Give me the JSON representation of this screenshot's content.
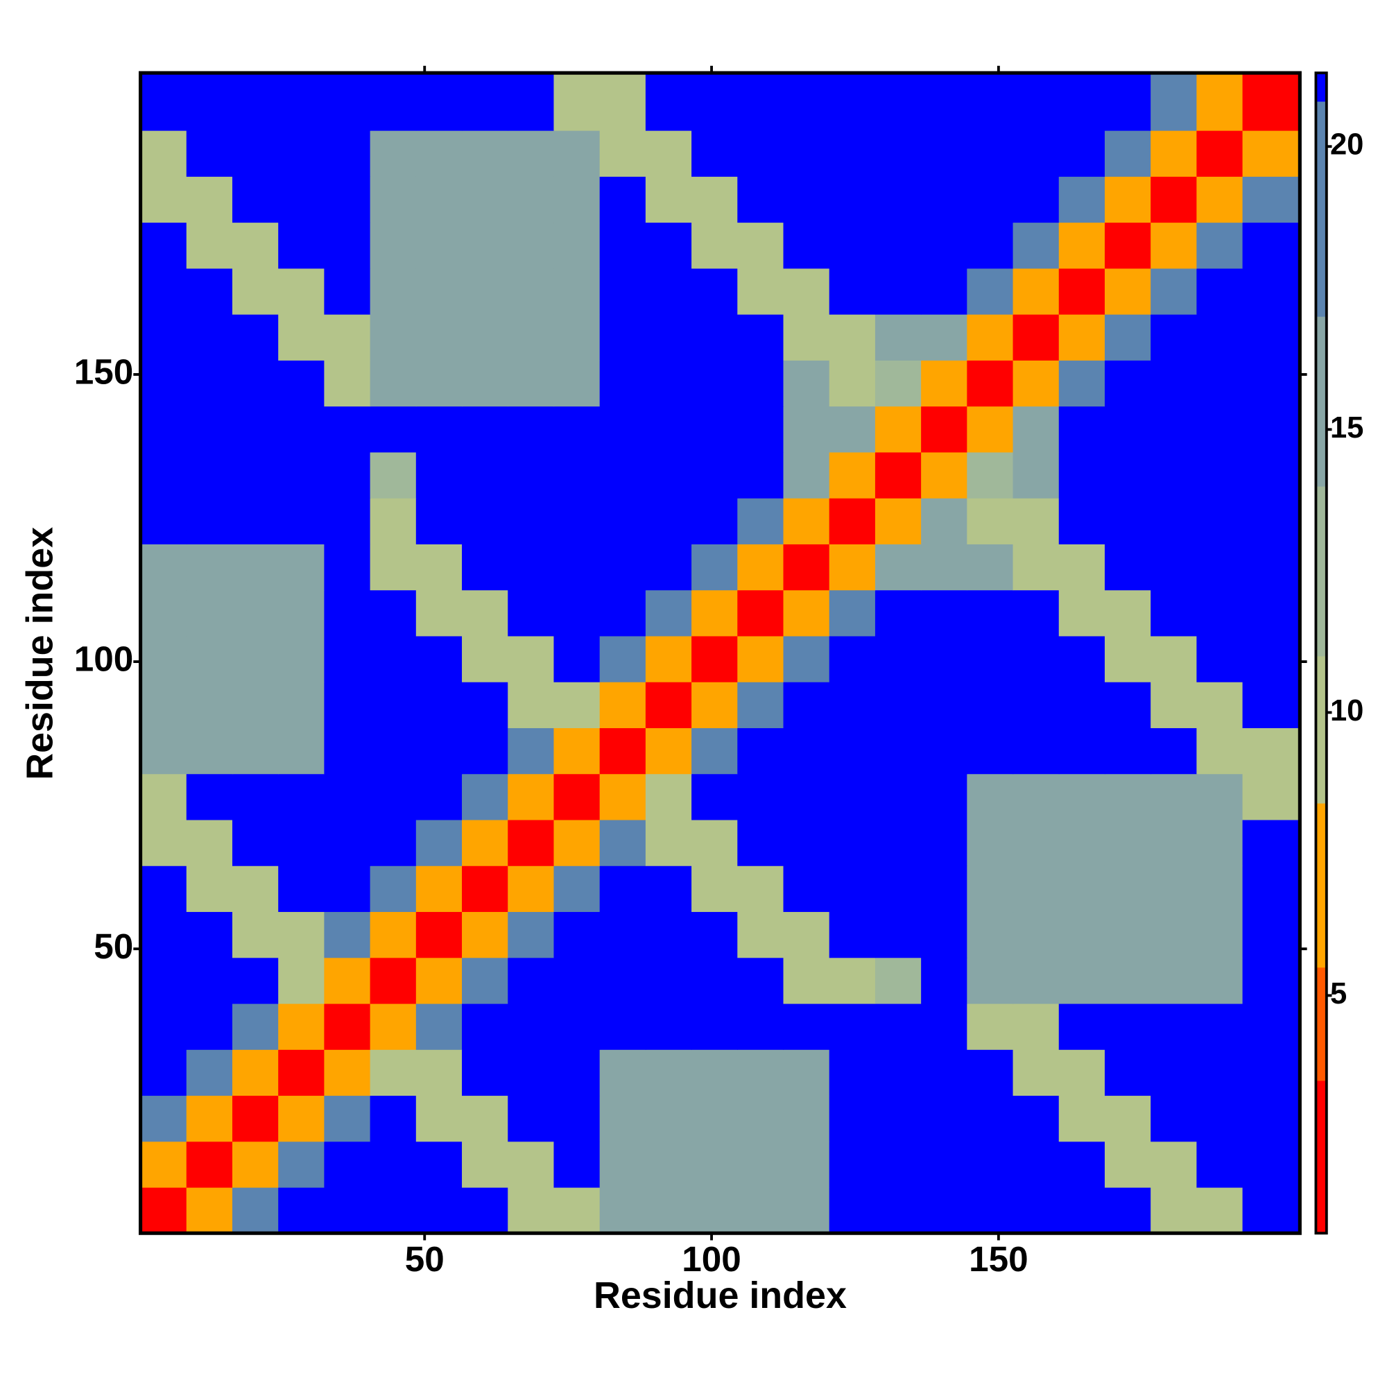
{
  "chart_data": {
    "type": "heatmap",
    "xlabel": "Residue index",
    "ylabel": "Residue index",
    "x": [
      4.5,
      12.5,
      20.5,
      28.5,
      36.5,
      44.5,
      52.5,
      60.5,
      68.5,
      76.5,
      84.5,
      92.5,
      100.5,
      108.5,
      116.5,
      124.5,
      132.5,
      140.5,
      148.5,
      156.5,
      164.5,
      172.5,
      180.5,
      188.5,
      196.5
    ],
    "y": [
      4.5,
      12.5,
      20.5,
      28.5,
      36.5,
      44.5,
      52.5,
      60.5,
      68.5,
      76.5,
      84.5,
      92.5,
      100.5,
      108.5,
      116.5,
      124.5,
      132.5,
      140.5,
      148.5,
      156.5,
      164.5,
      172.5,
      180.5,
      188.5,
      196.5
    ],
    "values": [
      [
        2,
        7,
        18,
        21,
        21,
        21,
        21,
        21,
        10,
        10,
        16,
        16,
        16,
        16,
        16,
        21,
        21,
        21,
        21,
        21,
        21,
        21,
        10,
        10,
        21
      ],
      [
        7,
        2,
        7,
        18,
        21,
        21,
        21,
        10,
        10,
        21,
        16,
        16,
        16,
        16,
        16,
        21,
        21,
        21,
        21,
        21,
        21,
        10,
        10,
        21,
        21
      ],
      [
        18,
        7,
        2,
        7,
        18,
        21,
        10,
        10,
        21,
        21,
        16,
        16,
        16,
        16,
        16,
        21,
        21,
        21,
        21,
        21,
        10,
        10,
        21,
        21,
        21
      ],
      [
        21,
        18,
        7,
        2,
        7,
        10,
        10,
        21,
        21,
        21,
        16,
        16,
        16,
        16,
        16,
        21,
        21,
        21,
        21,
        10,
        10,
        21,
        21,
        21,
        21
      ],
      [
        21,
        21,
        18,
        7,
        2,
        7,
        18,
        21,
        21,
        21,
        21,
        21,
        21,
        21,
        21,
        21,
        21,
        21,
        10,
        10,
        21,
        21,
        21,
        21,
        21
      ],
      [
        21,
        21,
        21,
        10,
        7,
        2,
        7,
        18,
        21,
        21,
        21,
        21,
        21,
        21,
        10,
        10,
        13,
        21,
        16,
        16,
        16,
        16,
        16,
        16,
        21
      ],
      [
        21,
        21,
        10,
        10,
        18,
        7,
        2,
        7,
        18,
        21,
        21,
        21,
        21,
        10,
        10,
        21,
        21,
        21,
        16,
        16,
        16,
        16,
        16,
        16,
        21
      ],
      [
        21,
        10,
        10,
        21,
        21,
        18,
        7,
        2,
        7,
        18,
        21,
        21,
        10,
        10,
        21,
        21,
        21,
        21,
        16,
        16,
        16,
        16,
        16,
        16,
        21
      ],
      [
        10,
        10,
        21,
        21,
        21,
        21,
        18,
        7,
        2,
        7,
        18,
        10,
        10,
        21,
        21,
        21,
        21,
        21,
        16,
        16,
        16,
        16,
        16,
        16,
        21
      ],
      [
        10,
        21,
        21,
        21,
        21,
        21,
        21,
        18,
        7,
        2,
        7,
        10,
        21,
        21,
        21,
        21,
        21,
        21,
        16,
        16,
        16,
        16,
        16,
        16,
        10
      ],
      [
        16,
        16,
        16,
        16,
        21,
        21,
        21,
        21,
        18,
        7,
        2,
        7,
        18,
        21,
        21,
        21,
        21,
        21,
        21,
        21,
        21,
        21,
        21,
        10,
        10
      ],
      [
        16,
        16,
        16,
        16,
        21,
        21,
        21,
        21,
        10,
        10,
        7,
        2,
        7,
        18,
        21,
        21,
        21,
        21,
        21,
        21,
        21,
        21,
        10,
        10,
        21
      ],
      [
        16,
        16,
        16,
        16,
        21,
        21,
        21,
        10,
        10,
        21,
        18,
        7,
        2,
        7,
        18,
        21,
        21,
        21,
        21,
        21,
        21,
        10,
        10,
        21,
        21
      ],
      [
        16,
        16,
        16,
        16,
        21,
        21,
        10,
        10,
        21,
        21,
        21,
        18,
        7,
        2,
        7,
        18,
        21,
        21,
        21,
        21,
        10,
        10,
        21,
        21,
        21
      ],
      [
        16,
        16,
        16,
        16,
        21,
        10,
        10,
        21,
        21,
        21,
        21,
        21,
        18,
        7,
        2,
        7,
        15,
        15,
        15,
        10,
        10,
        21,
        21,
        21,
        21
      ],
      [
        21,
        21,
        21,
        21,
        21,
        10,
        21,
        21,
        21,
        21,
        21,
        21,
        21,
        18,
        7,
        2,
        7,
        15,
        10,
        10,
        21,
        21,
        21,
        21,
        21
      ],
      [
        21,
        21,
        21,
        21,
        21,
        13,
        21,
        21,
        21,
        21,
        21,
        21,
        21,
        21,
        15,
        7,
        2,
        7,
        12,
        15,
        21,
        21,
        21,
        21,
        21
      ],
      [
        21,
        21,
        21,
        21,
        21,
        21,
        21,
        21,
        21,
        21,
        21,
        21,
        21,
        21,
        15,
        15,
        7,
        2,
        7,
        15,
        21,
        21,
        21,
        21,
        21
      ],
      [
        21,
        21,
        21,
        21,
        10,
        16,
        16,
        16,
        16,
        16,
        21,
        21,
        21,
        21,
        15,
        10,
        12,
        7,
        2,
        7,
        18,
        21,
        21,
        21,
        21
      ],
      [
        21,
        21,
        21,
        10,
        10,
        16,
        16,
        16,
        16,
        16,
        21,
        21,
        21,
        21,
        10,
        10,
        15,
        15,
        7,
        2,
        7,
        18,
        21,
        21,
        21
      ],
      [
        21,
        21,
        10,
        10,
        21,
        16,
        16,
        16,
        16,
        16,
        21,
        21,
        21,
        10,
        10,
        21,
        21,
        21,
        18,
        7,
        2,
        7,
        18,
        21,
        21
      ],
      [
        21,
        10,
        10,
        21,
        21,
        16,
        16,
        16,
        16,
        16,
        21,
        21,
        10,
        10,
        21,
        21,
        21,
        21,
        21,
        18,
        7,
        2,
        7,
        18,
        21
      ],
      [
        10,
        10,
        21,
        21,
        21,
        16,
        16,
        16,
        16,
        16,
        21,
        10,
        10,
        21,
        21,
        21,
        21,
        21,
        21,
        21,
        18,
        7,
        2,
        7,
        18
      ],
      [
        10,
        21,
        21,
        21,
        21,
        16,
        16,
        16,
        16,
        16,
        10,
        10,
        21,
        21,
        21,
        21,
        21,
        21,
        21,
        21,
        21,
        18,
        7,
        2,
        7
      ],
      [
        21,
        21,
        21,
        21,
        21,
        21,
        21,
        21,
        21,
        10,
        10,
        21,
        21,
        21,
        21,
        21,
        21,
        21,
        21,
        21,
        21,
        21,
        18,
        7,
        2
      ]
    ],
    "xlim": [
      0.5,
      202.5
    ],
    "ylim": [
      0.5,
      202.5
    ],
    "xticks": [
      50,
      100,
      150
    ],
    "yticks": [
      50,
      100,
      150
    ],
    "clim": [
      0.8,
      21.3
    ],
    "cticks": [
      5,
      10,
      15,
      20
    ],
    "colorscale": [
      {
        "to": 3.5,
        "color": "#ff0000"
      },
      {
        "to": 5.5,
        "color": "#ff5a00"
      },
      {
        "to": 8.4,
        "color": "#ffa500"
      },
      {
        "to": 11,
        "color": "#b4c48a"
      },
      {
        "to": 14,
        "color": "#a0b89a"
      },
      {
        "to": 17,
        "color": "#88a6a6"
      },
      {
        "to": 20.8,
        "color": "#5b84b0"
      },
      {
        "to": 21.3,
        "color": "#0000ff"
      }
    ]
  }
}
